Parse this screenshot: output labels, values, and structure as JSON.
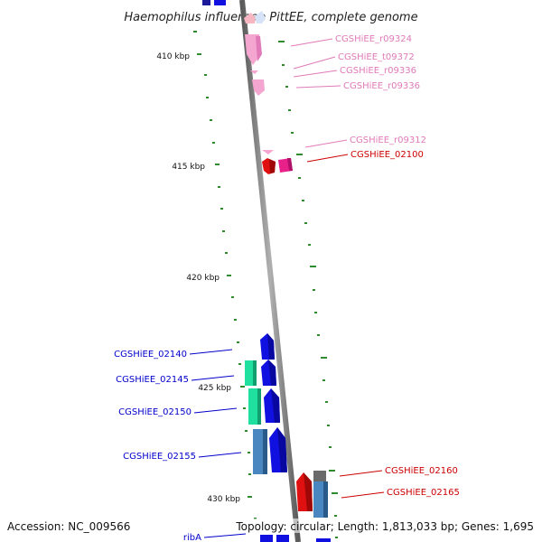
{
  "title": "Haemophilus influenzae PittEE, complete genome",
  "accession": "Accession: NC_009566",
  "topology": "Topology: circular; Length: 1,813,033 bp; Genes: 1,695",
  "kbp_labels": [
    "410 kbp",
    "415 kbp",
    "420 kbp",
    "425 kbp",
    "430 kbp"
  ],
  "colors": {
    "backbone": "#8a8a8a",
    "tick": "#2e8b2e",
    "rna_pink": "#f4a6d0",
    "gene_red": "#e01010",
    "gene_magenta": "#e8208a",
    "gene_blue": "#1010e0",
    "gene_steel": "#4a86c0",
    "gene_teal": "#20e0a0",
    "label_blue": "#0000cc",
    "label_red": "#cc0000",
    "label_pink": "#e07ab8"
  },
  "labels_right_pink": [
    "CGSHiEE_r09324",
    "CGSHiEE_t09372",
    "CGSHiEE_r09336",
    "CGSHiEE_r09336",
    "CGSHiEE_r09312"
  ],
  "labels_right_red": [
    "CGSHiEE_02100",
    "CGSHiEE_02160",
    "CGSHiEE_02165"
  ],
  "labels_left_blue": [
    "CGSHiEE_02140",
    "CGSHiEE_02145",
    "CGSHiEE_02150",
    "CGSHiEE_02155",
    "ribA"
  ]
}
